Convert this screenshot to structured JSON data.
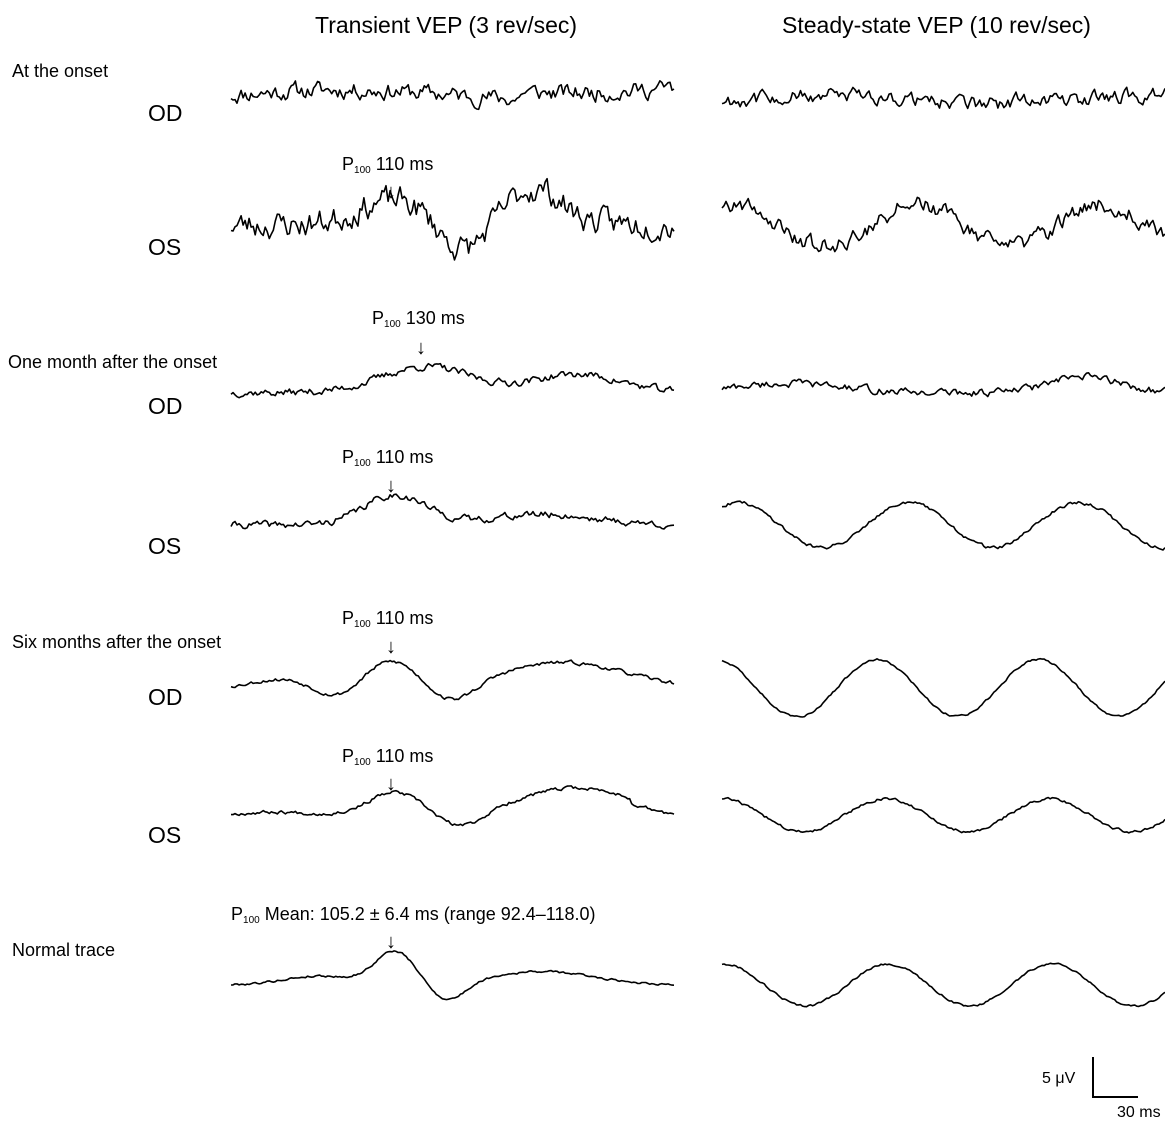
{
  "chart_data": {
    "type": "line",
    "columns": [
      {
        "title": "Transient VEP (3 rev/sec)"
      },
      {
        "title": "Steady-state VEP (10 rev/sec)"
      }
    ],
    "sections": [
      {
        "label": "At the onset",
        "rows": [
          {
            "eye": "OD",
            "transient_peak": null,
            "seed": 11,
            "tr": "noisyflat",
            "ss": "noisyflat"
          },
          {
            "eye": "OS",
            "transient_peak": {
              "sub": "100",
              "text": "110 ms"
            },
            "seed": 23,
            "tr": "os1",
            "ss": "sine_noisy"
          }
        ]
      },
      {
        "label": "One month after the onset",
        "rows": [
          {
            "eye": "OD",
            "transient_peak": {
              "sub": "100",
              "text": "130 ms"
            },
            "seed": 37,
            "tr": "late",
            "ss": "odm"
          },
          {
            "eye": "OS",
            "transient_peak": {
              "sub": "100",
              "text": "110 ms"
            },
            "seed": 41,
            "tr": "normal_small",
            "ss": "sine_med"
          }
        ]
      },
      {
        "label": "Six months after the onset",
        "rows": [
          {
            "eye": "OD",
            "transient_peak": {
              "sub": "100",
              "text": "110 ms"
            },
            "seed": 53,
            "tr": "normal",
            "ss": "sine_big"
          },
          {
            "eye": "OS",
            "transient_peak": {
              "sub": "100",
              "text": "110 ms"
            },
            "seed": 67,
            "tr": "normal2",
            "ss": "sine_small"
          }
        ]
      },
      {
        "label": "Normal trace",
        "rows": [
          {
            "eye": "",
            "transient_peak": {
              "sub": "100",
              "text": "Mean: 105.2 ± 6.4 ms (range 92.4–118.0)"
            },
            "seed": 79,
            "tr": "normal_sharp",
            "ss": "sine_norm"
          }
        ]
      }
    ],
    "scale_bar": {
      "amplitude": "5 μV",
      "time": "30 ms"
    },
    "p_letter": "P",
    "arrow_glyph": "↓"
  }
}
